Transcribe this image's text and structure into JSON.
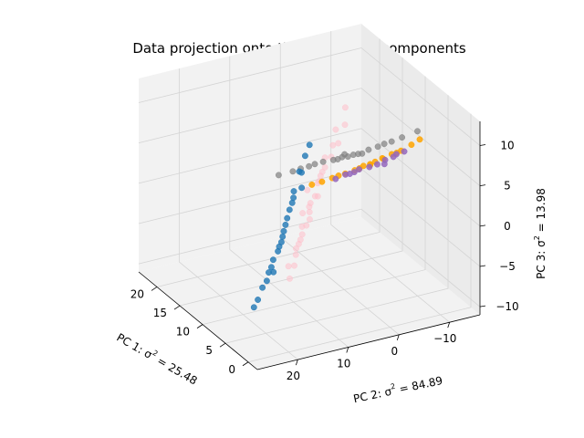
{
  "chart_data": {
    "type": "scatter",
    "projection": "3d",
    "title": "Data projection onto three principle components",
    "axes": {
      "x": {
        "label_prefix": "PC 1: σ",
        "label_suffix": " = 25.48",
        "exponent": "2",
        "lim": [
          -2,
          24
        ],
        "ticks": [
          0,
          5,
          10,
          15,
          20
        ]
      },
      "y": {
        "label_prefix": "PC 2: σ",
        "label_suffix": " = 84.89",
        "exponent": "2",
        "lim": [
          -16,
          28
        ],
        "ticks": [
          20,
          10,
          0,
          -10
        ]
      },
      "z": {
        "label_prefix": "PC 3: σ",
        "label_suffix": " = 13.98",
        "exponent": "2",
        "lim": [
          -11,
          13
        ],
        "ticks": [
          -10,
          -5,
          0,
          5,
          10
        ]
      }
    },
    "grid": true,
    "legend": "none",
    "series": [
      {
        "color": "#ffc0cb",
        "alpha": 0.55,
        "x": [
          11.6,
          13.1,
          9.4,
          15.9,
          7.2,
          12.8,
          18.3,
          10.5,
          14.2,
          8.8,
          16.7,
          6.1,
          11.9,
          13.7,
          9.9,
          17.5,
          12.3,
          8.2,
          14.9,
          10.8,
          15.4,
          7.7,
          12.1,
          19.2,
          11.3,
          9.1,
          13.5,
          16.2,
          10.2,
          14.6
        ],
        "y": [
          6.8,
          4.5,
          9.2,
          -1.5,
          12.4,
          2.7,
          -5.8,
          7.9,
          0.9,
          10.6,
          -3.8,
          14.3,
          5.2,
          1.6,
          8.4,
          -6.9,
          3.7,
          11.2,
          -0.6,
          6.1,
          -2.3,
          13.1,
          4.8,
          -8.5,
          5.7,
          9.8,
          2.1,
          -4.4,
          7.3,
          0.2
        ],
        "z": [
          -1.2,
          0.6,
          -3.1,
          2.4,
          -4.8,
          -0.3,
          4.1,
          -2.2,
          1.3,
          -3.7,
          3.2,
          -5.6,
          -0.8,
          1.0,
          -2.8,
          4.9,
          0.1,
          -4.1,
          1.8,
          -1.7,
          2.6,
          -5.0,
          -0.5,
          6.0,
          -1.1,
          -3.4,
          0.9,
          3.6,
          -2.0,
          1.5
        ]
      },
      {
        "color": "#ffa500",
        "alpha": 0.85,
        "x": [
          6.4,
          7.8,
          5.2,
          9.1,
          4.6,
          8.5,
          6.9,
          10.2,
          5.8,
          7.3,
          11.1,
          4.1,
          8.0,
          6.1,
          9.7,
          5.5,
          12.0,
          7.0
        ],
        "y": [
          -4.5,
          -1.8,
          -6.9,
          0.6,
          -8.4,
          -0.7,
          -3.3,
          2.2,
          -5.6,
          -2.7,
          3.4,
          -9.6,
          -1.2,
          -4.0,
          1.4,
          -6.3,
          4.6,
          -2.4
        ],
        "z": [
          6.2,
          5.1,
          7.4,
          3.9,
          8.2,
          4.4,
          5.8,
          3.1,
          6.9,
          5.3,
          2.4,
          8.9,
          4.8,
          6.5,
          3.5,
          7.1,
          1.8,
          5.6
        ]
      },
      {
        "color": "#9467bd",
        "alpha": 0.85,
        "x": [
          7.1,
          8.3,
          6.0,
          9.4,
          5.4,
          8.8,
          6.6,
          10.0,
          7.6,
          5.9,
          9.0,
          6.3
        ],
        "y": [
          -3.9,
          -1.4,
          -6.1,
          0.3,
          -7.7,
          -0.9,
          -5.0,
          1.7,
          -2.8,
          -6.6,
          -0.2,
          -4.6
        ],
        "z": [
          5.3,
          4.5,
          6.4,
          3.6,
          7.1,
          4.0,
          5.9,
          3.0,
          4.9,
          6.7,
          3.8,
          5.6
        ]
      },
      {
        "color": "#808080",
        "alpha": 0.7,
        "x": [
          5.1,
          6.7,
          4.4,
          8.2,
          3.6,
          7.4,
          5.8,
          9.3,
          4.9,
          6.2,
          10.4,
          3.1,
          7.0,
          5.4,
          8.8,
          4.0,
          11.5,
          6.5,
          2.6,
          9.9
        ],
        "y": [
          0.9,
          3.4,
          -1.6,
          5.8,
          -3.6,
          4.5,
          2.0,
          7.6,
          -0.2,
          2.7,
          9.8,
          -5.2,
          4.0,
          1.4,
          6.9,
          -2.5,
          11.6,
          3.1,
          -7.8,
          8.7
        ],
        "z": [
          8.3,
          7.5,
          9.1,
          6.6,
          9.8,
          7.0,
          8.0,
          5.8,
          8.7,
          7.7,
          5.0,
          10.3,
          7.2,
          8.2,
          6.2,
          9.5,
          4.3,
          7.9,
          10.9,
          5.4
        ]
      },
      {
        "color": "#1f77b4",
        "alpha": 0.8,
        "x": [
          14.8,
          16.3,
          13.0,
          18.5,
          11.4,
          17.2,
          15.6,
          19.8,
          12.7,
          14.1,
          20.9,
          10.3,
          16.9,
          13.6,
          18.0,
          11.9,
          21.6,
          15.2,
          9.6,
          17.7,
          12.2,
          19.3,
          14.5,
          16.0
        ],
        "y": [
          8.1,
          5.6,
          11.7,
          2.3,
          14.9,
          3.8,
          6.9,
          -0.4,
          12.5,
          9.4,
          -2.1,
          16.8,
          4.6,
          10.8,
          1.2,
          13.6,
          -3.6,
          7.5,
          18.2,
          3.1,
          12.0,
          0.5,
          8.8,
          6.2
        ],
        "z": [
          -6.1,
          -4.2,
          -7.8,
          -2.4,
          -9.1,
          -3.0,
          -5.3,
          -1.1,
          -8.2,
          -6.7,
          0.2,
          -9.8,
          -3.6,
          -7.3,
          -1.9,
          -8.7,
          1.0,
          -5.7,
          -10.2,
          -2.7,
          -8.0,
          -0.6,
          -6.4,
          -4.8
        ]
      }
    ]
  }
}
